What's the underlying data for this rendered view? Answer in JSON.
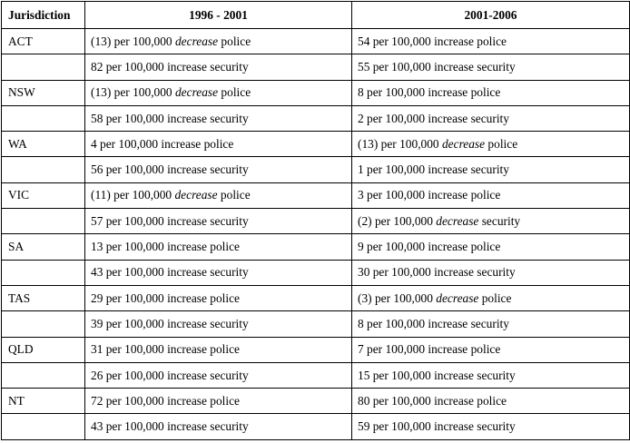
{
  "table": {
    "headers": [
      "Jurisdiction",
      "1996 - 2001",
      "2001-2006"
    ],
    "rows": [
      {
        "jurisdiction": "ACT",
        "p1": {
          "pre": "(13) per 100,000 ",
          "dir": "decrease",
          "post": " police"
        },
        "p2": {
          "pre": "54 per 100,000 ",
          "dir": "increase",
          "post": " police"
        }
      },
      {
        "jurisdiction": "",
        "p1": {
          "pre": "82 per 100,000 ",
          "dir": "increase",
          "post": " security"
        },
        "p2": {
          "pre": "55 per 100,000 ",
          "dir": "increase",
          "post": " security"
        }
      },
      {
        "jurisdiction": "NSW",
        "p1": {
          "pre": "(13) per 100,000 ",
          "dir": "decrease",
          "post": " police"
        },
        "p2": {
          "pre": "8 per 100,000 ",
          "dir": "increase",
          "post": " police"
        }
      },
      {
        "jurisdiction": "",
        "p1": {
          "pre": "58 per 100,000 ",
          "dir": "increase",
          "post": " security"
        },
        "p2": {
          "pre": "2 per 100,000 ",
          "dir": "increase",
          "post": " security"
        }
      },
      {
        "jurisdiction": "WA",
        "p1": {
          "pre": "4 per 100,000 ",
          "dir": "increase",
          "post": " police"
        },
        "p2": {
          "pre": "(13) per 100,000 ",
          "dir": "decrease",
          "post": " police"
        }
      },
      {
        "jurisdiction": "",
        "p1": {
          "pre": "56 per 100,000 ",
          "dir": "increase",
          "post": " security"
        },
        "p2": {
          "pre": "1 per 100,000 ",
          "dir": "increase",
          "post": " security"
        }
      },
      {
        "jurisdiction": "VIC",
        "p1": {
          "pre": "(11) per 100,000 ",
          "dir": "decrease",
          "post": " police"
        },
        "p2": {
          "pre": "3 per 100,000 ",
          "dir": "increase",
          "post": " police"
        }
      },
      {
        "jurisdiction": "",
        "p1": {
          "pre": "57 per 100,000 ",
          "dir": "increase",
          "post": " security"
        },
        "p2": {
          "pre": "(2) per 100,000 ",
          "dir": "decrease",
          "post": " security"
        }
      },
      {
        "jurisdiction": "SA",
        "p1": {
          "pre": "13 per 100,000 ",
          "dir": "increase",
          "post": " police"
        },
        "p2": {
          "pre": "9 per 100,000 ",
          "dir": "increase",
          "post": " police"
        }
      },
      {
        "jurisdiction": "",
        "p1": {
          "pre": "43 per 100,000 ",
          "dir": "increase",
          "post": " security"
        },
        "p2": {
          "pre": "30 per 100,000 ",
          "dir": "increase",
          "post": " security"
        }
      },
      {
        "jurisdiction": "TAS",
        "p1": {
          "pre": "29 per 100,000 ",
          "dir": "increase",
          "post": " police"
        },
        "p2": {
          "pre": "(3) per 100,000 ",
          "dir": "decrease",
          "post": " police"
        }
      },
      {
        "jurisdiction": "",
        "p1": {
          "pre": "39 per 100,000 ",
          "dir": "increase",
          "post": " security"
        },
        "p2": {
          "pre": "8 per 100,000 ",
          "dir": "increase",
          "post": " security"
        }
      },
      {
        "jurisdiction": "QLD",
        "p1": {
          "pre": "31 per 100,000 ",
          "dir": "increase",
          "post": " police"
        },
        "p2": {
          "pre": "7 per 100,000 ",
          "dir": "increase",
          "post": " police"
        }
      },
      {
        "jurisdiction": "",
        "p1": {
          "pre": "26 per 100,000 ",
          "dir": "increase",
          "post": " security"
        },
        "p2": {
          "pre": "15 per 100,000 ",
          "dir": "increase",
          "post": " security"
        }
      },
      {
        "jurisdiction": "NT",
        "p1": {
          "pre": "72 per 100,000 ",
          "dir": "increase",
          "post": " police"
        },
        "p2": {
          "pre": "80 per 100,000 ",
          "dir": "increase",
          "post": " police"
        }
      },
      {
        "jurisdiction": "",
        "p1": {
          "pre": "43 per 100,000 ",
          "dir": "increase",
          "post": " security"
        },
        "p2": {
          "pre": "59 per 100,000 ",
          "dir": "increase",
          "post": " security"
        }
      }
    ]
  }
}
